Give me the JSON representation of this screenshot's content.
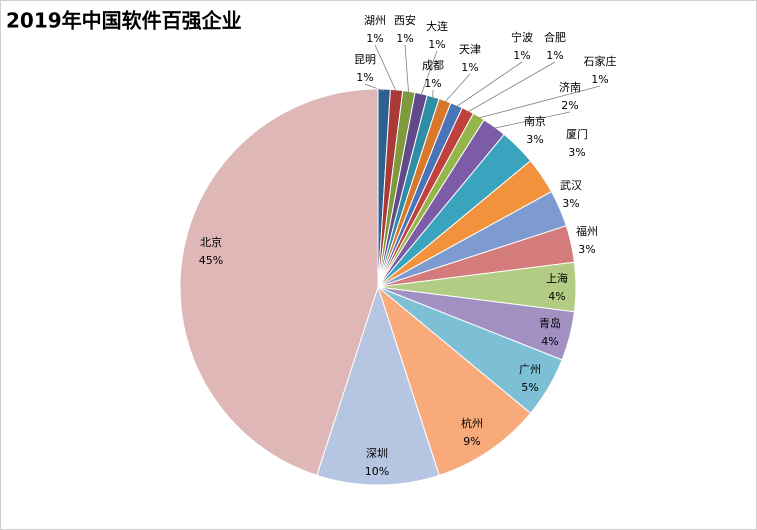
{
  "chart_data": {
    "type": "pie",
    "title": "2019年中国软件百强企业",
    "categories": [
      "昆明",
      "湖州",
      "西安",
      "大连",
      "成都",
      "天津",
      "宁波",
      "合肥",
      "石家庄",
      "济南",
      "南京",
      "厦门",
      "武汉",
      "福州",
      "上海",
      "青岛",
      "广州",
      "杭州",
      "深圳",
      "北京"
    ],
    "values": [
      1,
      1,
      1,
      1,
      1,
      1,
      1,
      1,
      1,
      2,
      3,
      3,
      3,
      3,
      4,
      4,
      5,
      9,
      10,
      45
    ],
    "value_labels": [
      "1%",
      "1%",
      "1%",
      "1%",
      "1%",
      "1%",
      "1%",
      "1%",
      "1%",
      "2%",
      "3%",
      "3%",
      "3%",
      "3%",
      "4%",
      "4%",
      "5%",
      "9%",
      "10%",
      "45%"
    ],
    "colors": [
      "#2f5f91",
      "#a93a37",
      "#7f9a3c",
      "#62498a",
      "#2f8ea6",
      "#d9772a",
      "#4a74b8",
      "#c0413d",
      "#93b54a",
      "#7c5ca6",
      "#3aa3bd",
      "#f2923d",
      "#7d9bd1",
      "#d47c7b",
      "#b2cd83",
      "#a290c2",
      "#7dc0d6",
      "#f8aa7b",
      "#b6c5e1",
      "#deb7b6"
    ]
  }
}
